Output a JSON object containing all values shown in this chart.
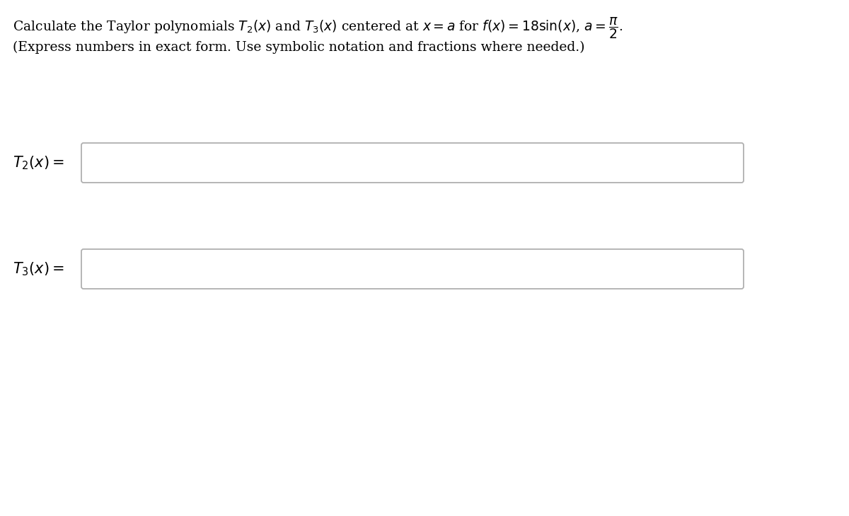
{
  "background_color": "#ffffff",
  "line1_plain": "Calculate the Taylor polynomials ",
  "line1_math": "$T_2(x)$",
  "line1_and": " and ",
  "line1_math2": "$T_3(x)$",
  "line1_rest": " centered at ",
  "line1_math3": "$x = a$",
  "line1_for": " for ",
  "line1_math4": "$f(x) = 18\\,\\mathrm{sin}(x)$",
  "line1_comma": ", ",
  "line1_math5": "$a = \\frac{\\pi}{2}$",
  "line1_dot": ".",
  "title_line1": "Calculate the Taylor polynomials $T_2(x)$ and $T_3(x)$ centered at $x = a$ for $f(x) = 18 \\sin(x)$, $a = \\dfrac{\\pi}{2}$.",
  "title_line2": "(Express numbers in exact form. Use symbolic notation and fractions where needed.)",
  "label1": "$T_2(x) =$",
  "label2": "$T_3(x) =$",
  "text_color": "#000000",
  "box_border_color": "#b0b0b0",
  "box_fill_color": "#ffffff",
  "title_fontsize": 13.5,
  "subtitle_fontsize": 13.5,
  "label_fontsize": 15,
  "fig_width": 12.0,
  "fig_height": 7.29
}
